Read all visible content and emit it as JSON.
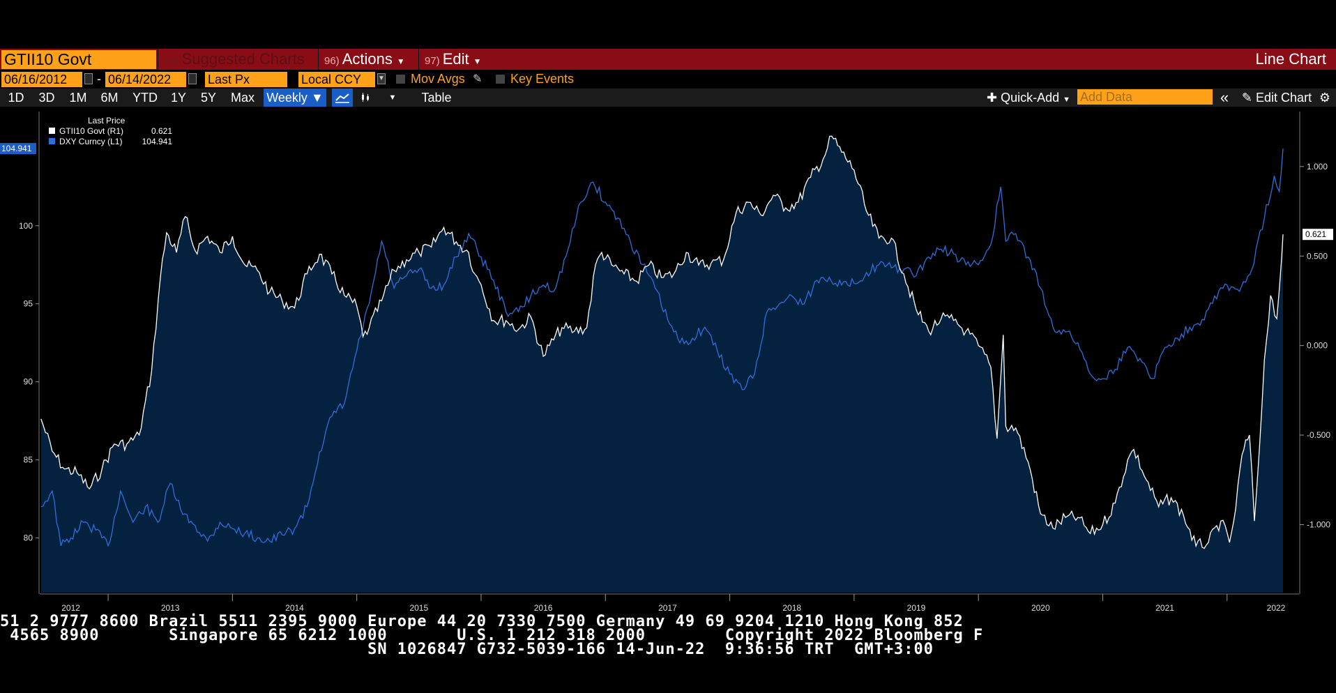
{
  "header": {
    "security": "GTII10 Govt",
    "menus": [
      {
        "num": "94)",
        "label": "Suggested Charts"
      },
      {
        "num": "96)",
        "label": "Actions"
      },
      {
        "num": "97)",
        "label": "Edit"
      }
    ],
    "chart_type_label": "Line Chart"
  },
  "controls": {
    "start_date": "06/16/2012",
    "dash": "-",
    "end_date": "06/14/2022",
    "price_field": "Last Px",
    "currency": "Local CCY",
    "mov_avgs": "Mov Avgs",
    "key_events": "Key Events"
  },
  "toolbar": {
    "periods": [
      "1D",
      "3D",
      "1M",
      "6M",
      "YTD",
      "1Y",
      "5Y",
      "Max"
    ],
    "frequency": "Weekly",
    "table": "Table",
    "quick_add": "Quick-Add",
    "add_data_placeholder": "Add Data",
    "edit_chart": "Edit Chart"
  },
  "colors": {
    "gtii10": "#ffffff",
    "dxy": "#2f6fdc",
    "area_fill": "#04213f",
    "accent_orange": "#ffa21a",
    "header_red": "#8a0c14"
  },
  "chart_data": {
    "type": "line",
    "legend": {
      "title": "Last Price",
      "items": [
        {
          "name": "GTII10 Govt  (R1)",
          "value": "0.621",
          "color": "#ffffff"
        },
        {
          "name": "DXY Curncy  (L1)",
          "value": "104.941",
          "color": "#2f6fdc"
        }
      ]
    },
    "left_axis": {
      "ticks": [
        80,
        85,
        90,
        95,
        100
      ],
      "tick_labels": [
        "80",
        "85",
        "90",
        "95",
        "100"
      ],
      "range": [
        76.5,
        107
      ],
      "last_label": "104.941"
    },
    "right_axis": {
      "ticks": [
        -1,
        -0.5,
        0,
        0.5,
        1
      ],
      "tick_labels": [
        "-1.000",
        "-0.500",
        "0.000",
        "0.500",
        "1.000"
      ],
      "range": [
        -1.38,
        1.28
      ],
      "last_label": "0.621"
    },
    "x_axis": {
      "years": [
        "2012",
        "2013",
        "2014",
        "2015",
        "2016",
        "2017",
        "2018",
        "2019",
        "2020",
        "2021",
        "2022"
      ],
      "range": [
        2012.45,
        2022.45
      ]
    },
    "series": [
      {
        "name": "GTII10 Govt",
        "axis": "right",
        "color": "#ffffff",
        "points": [
          [
            2012.46,
            -0.41
          ],
          [
            2012.55,
            -0.59
          ],
          [
            2012.65,
            -0.69
          ],
          [
            2012.75,
            -0.71
          ],
          [
            2012.85,
            -0.8
          ],
          [
            2012.95,
            -0.69
          ],
          [
            2013.05,
            -0.55
          ],
          [
            2013.15,
            -0.55
          ],
          [
            2013.25,
            -0.5
          ],
          [
            2013.35,
            -0.14
          ],
          [
            2013.42,
            0.38
          ],
          [
            2013.47,
            0.63
          ],
          [
            2013.55,
            0.52
          ],
          [
            2013.62,
            0.72
          ],
          [
            2013.7,
            0.53
          ],
          [
            2013.8,
            0.61
          ],
          [
            2013.9,
            0.52
          ],
          [
            2014.0,
            0.61
          ],
          [
            2014.1,
            0.45
          ],
          [
            2014.2,
            0.42
          ],
          [
            2014.3,
            0.3
          ],
          [
            2014.4,
            0.25
          ],
          [
            2014.5,
            0.21
          ],
          [
            2014.6,
            0.4
          ],
          [
            2014.7,
            0.51
          ],
          [
            2014.8,
            0.4
          ],
          [
            2014.9,
            0.28
          ],
          [
            2015.0,
            0.22
          ],
          [
            2015.05,
            0.05
          ],
          [
            2015.1,
            0.1
          ],
          [
            2015.2,
            0.25
          ],
          [
            2015.3,
            0.42
          ],
          [
            2015.4,
            0.48
          ],
          [
            2015.5,
            0.52
          ],
          [
            2015.6,
            0.55
          ],
          [
            2015.7,
            0.66
          ],
          [
            2015.8,
            0.58
          ],
          [
            2015.9,
            0.52
          ],
          [
            2015.95,
            0.4
          ],
          [
            2016.0,
            0.34
          ],
          [
            2016.1,
            0.14
          ],
          [
            2016.2,
            0.14
          ],
          [
            2016.3,
            0.09
          ],
          [
            2016.4,
            0.16
          ],
          [
            2016.5,
            -0.06
          ],
          [
            2016.55,
            0.0
          ],
          [
            2016.65,
            0.1
          ],
          [
            2016.75,
            0.08
          ],
          [
            2016.85,
            0.1
          ],
          [
            2016.92,
            0.45
          ],
          [
            2016.97,
            0.52
          ],
          [
            2017.05,
            0.45
          ],
          [
            2017.15,
            0.4
          ],
          [
            2017.25,
            0.36
          ],
          [
            2017.35,
            0.45
          ],
          [
            2017.45,
            0.38
          ],
          [
            2017.55,
            0.4
          ],
          [
            2017.65,
            0.52
          ],
          [
            2017.75,
            0.45
          ],
          [
            2017.85,
            0.46
          ],
          [
            2017.95,
            0.48
          ],
          [
            2018.05,
            0.74
          ],
          [
            2018.15,
            0.8
          ],
          [
            2018.25,
            0.73
          ],
          [
            2018.35,
            0.84
          ],
          [
            2018.45,
            0.77
          ],
          [
            2018.55,
            0.8
          ],
          [
            2018.65,
            0.94
          ],
          [
            2018.75,
            1.04
          ],
          [
            2018.82,
            1.17
          ],
          [
            2018.9,
            1.08
          ],
          [
            2019.0,
            0.98
          ],
          [
            2019.1,
            0.75
          ],
          [
            2019.2,
            0.6
          ],
          [
            2019.3,
            0.6
          ],
          [
            2019.4,
            0.4
          ],
          [
            2019.5,
            0.2
          ],
          [
            2019.6,
            0.08
          ],
          [
            2019.7,
            0.15
          ],
          [
            2019.8,
            0.14
          ],
          [
            2019.9,
            0.08
          ],
          [
            2020.0,
            0.0
          ],
          [
            2020.1,
            -0.12
          ],
          [
            2020.15,
            -0.52
          ],
          [
            2020.2,
            0.06
          ],
          [
            2020.22,
            -0.45
          ],
          [
            2020.3,
            -0.46
          ],
          [
            2020.4,
            -0.65
          ],
          [
            2020.5,
            -0.94
          ],
          [
            2020.6,
            -1.02
          ],
          [
            2020.7,
            -0.96
          ],
          [
            2020.8,
            -0.96
          ],
          [
            2020.9,
            -1.05
          ],
          [
            2021.0,
            -1.0
          ],
          [
            2021.1,
            -0.88
          ],
          [
            2021.2,
            -0.64
          ],
          [
            2021.25,
            -0.58
          ],
          [
            2021.35,
            -0.75
          ],
          [
            2021.45,
            -0.9
          ],
          [
            2021.55,
            -0.85
          ],
          [
            2021.65,
            -0.95
          ],
          [
            2021.75,
            -1.12
          ],
          [
            2021.85,
            -1.1
          ],
          [
            2021.95,
            -0.98
          ],
          [
            2022.02,
            -1.1
          ],
          [
            2022.07,
            -0.91
          ],
          [
            2022.12,
            -0.61
          ],
          [
            2022.18,
            -0.5
          ],
          [
            2022.22,
            -0.98
          ],
          [
            2022.26,
            -0.58
          ],
          [
            2022.3,
            -0.08
          ],
          [
            2022.35,
            0.28
          ],
          [
            2022.4,
            0.15
          ],
          [
            2022.44,
            0.5
          ],
          [
            2022.45,
            0.621
          ]
        ]
      },
      {
        "name": "DXY Curncy",
        "axis": "left",
        "color": "#2f6fdc",
        "points": [
          [
            2012.46,
            82.0
          ],
          [
            2012.55,
            83.0
          ],
          [
            2012.62,
            79.5
          ],
          [
            2012.7,
            80.0
          ],
          [
            2012.8,
            81.0
          ],
          [
            2012.9,
            80.5
          ],
          [
            2013.0,
            79.5
          ],
          [
            2013.1,
            83.0
          ],
          [
            2013.2,
            81.0
          ],
          [
            2013.3,
            82.0
          ],
          [
            2013.4,
            81.0
          ],
          [
            2013.5,
            83.5
          ],
          [
            2013.6,
            81.5
          ],
          [
            2013.7,
            80.8
          ],
          [
            2013.8,
            79.8
          ],
          [
            2013.9,
            81.0
          ],
          [
            2014.0,
            80.6
          ],
          [
            2014.1,
            80.3
          ],
          [
            2014.2,
            80.0
          ],
          [
            2014.3,
            79.8
          ],
          [
            2014.4,
            80.2
          ],
          [
            2014.5,
            80.6
          ],
          [
            2014.6,
            82.0
          ],
          [
            2014.7,
            85.5
          ],
          [
            2014.8,
            87.8
          ],
          [
            2014.9,
            88.6
          ],
          [
            2015.0,
            92.0
          ],
          [
            2015.1,
            95.0
          ],
          [
            2015.2,
            99.0
          ],
          [
            2015.3,
            96.0
          ],
          [
            2015.4,
            96.8
          ],
          [
            2015.5,
            97.2
          ],
          [
            2015.6,
            96.0
          ],
          [
            2015.7,
            96.2
          ],
          [
            2015.8,
            98.0
          ],
          [
            2015.9,
            99.5
          ],
          [
            2016.0,
            98.0
          ],
          [
            2016.1,
            96.5
          ],
          [
            2016.2,
            94.5
          ],
          [
            2016.3,
            94.5
          ],
          [
            2016.4,
            95.5
          ],
          [
            2016.5,
            96.2
          ],
          [
            2016.6,
            96.0
          ],
          [
            2016.7,
            98.5
          ],
          [
            2016.8,
            101.5
          ],
          [
            2016.9,
            102.8
          ],
          [
            2017.0,
            101.5
          ],
          [
            2017.1,
            100.5
          ],
          [
            2017.2,
            99.0
          ],
          [
            2017.3,
            97.5
          ],
          [
            2017.4,
            96.0
          ],
          [
            2017.5,
            94.0
          ],
          [
            2017.6,
            92.5
          ],
          [
            2017.7,
            92.8
          ],
          [
            2017.8,
            93.5
          ],
          [
            2017.9,
            92.0
          ],
          [
            2018.0,
            90.5
          ],
          [
            2018.1,
            89.5
          ],
          [
            2018.2,
            90.5
          ],
          [
            2018.3,
            94.5
          ],
          [
            2018.4,
            95.0
          ],
          [
            2018.5,
            95.5
          ],
          [
            2018.6,
            95.0
          ],
          [
            2018.7,
            96.5
          ],
          [
            2018.8,
            96.7
          ],
          [
            2018.9,
            96.2
          ],
          [
            2019.0,
            96.3
          ],
          [
            2019.1,
            97.0
          ],
          [
            2019.2,
            97.5
          ],
          [
            2019.3,
            97.3
          ],
          [
            2019.4,
            97.2
          ],
          [
            2019.5,
            96.8
          ],
          [
            2019.6,
            98.0
          ],
          [
            2019.7,
            98.5
          ],
          [
            2019.8,
            98.2
          ],
          [
            2019.9,
            97.5
          ],
          [
            2020.0,
            97.5
          ],
          [
            2020.1,
            98.8
          ],
          [
            2020.18,
            102.5
          ],
          [
            2020.22,
            99.0
          ],
          [
            2020.3,
            99.5
          ],
          [
            2020.4,
            98.0
          ],
          [
            2020.5,
            96.0
          ],
          [
            2020.6,
            93.5
          ],
          [
            2020.7,
            93.2
          ],
          [
            2020.8,
            92.5
          ],
          [
            2020.9,
            90.5
          ],
          [
            2021.0,
            90.2
          ],
          [
            2021.1,
            90.8
          ],
          [
            2021.2,
            92.2
          ],
          [
            2021.3,
            91.5
          ],
          [
            2021.4,
            90.2
          ],
          [
            2021.5,
            92.2
          ],
          [
            2021.6,
            92.8
          ],
          [
            2021.7,
            93.5
          ],
          [
            2021.8,
            94.0
          ],
          [
            2021.9,
            95.5
          ],
          [
            2022.0,
            96.2
          ],
          [
            2022.1,
            95.8
          ],
          [
            2022.2,
            97.2
          ],
          [
            2022.3,
            100.5
          ],
          [
            2022.38,
            103.2
          ],
          [
            2022.42,
            102.2
          ],
          [
            2022.45,
            104.941
          ]
        ]
      }
    ]
  },
  "ticker": {
    "line1": "51 2 9777 8600 Brazil 5511 2395 9000 Europe 44 20 7330 7500 Germany 49 69 9204 1210 Hong Kong 852",
    "line2": " 4565 8900       Singapore 65 6212 1000       U.S. 1 212 318 2000        Copyright 2022 Bloomberg F",
    "line3": "                                     SN 1026847 G732-5039-166 14-Jun-22  9:36:56 TRT  GMT+3:00"
  }
}
